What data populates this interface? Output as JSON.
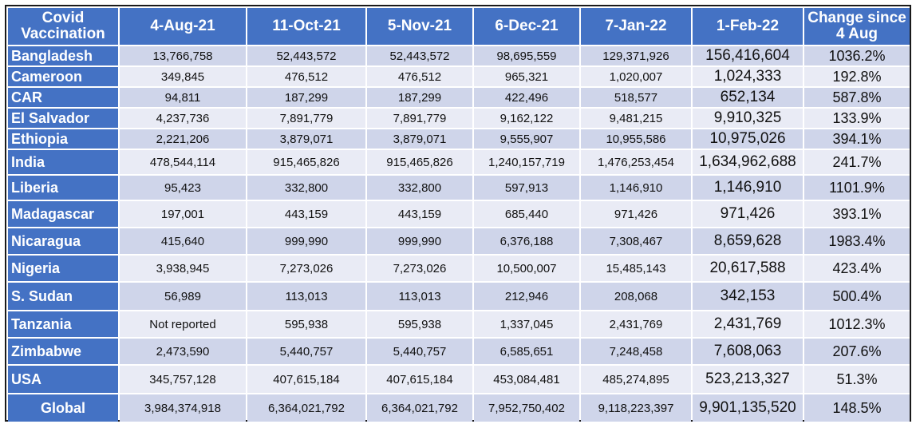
{
  "table": {
    "headers": [
      "Covid\nVaccination",
      "4-Aug-21",
      "11-Oct-21",
      "5-Nov-21",
      "6-Dec-21",
      "7-Jan-22",
      "1-Feb-22",
      "Change since\n4 Aug"
    ],
    "rows": [
      {
        "country": "Bangladesh",
        "values": [
          "13,766,758",
          "52,443,572",
          "52,443,572",
          "98,695,559",
          "129,371,926",
          "156,416,604",
          "1036.2%"
        ]
      },
      {
        "country": "Cameroon",
        "values": [
          "349,845",
          "476,512",
          "476,512",
          "965,321",
          "1,020,007",
          "1,024,333",
          "192.8%"
        ]
      },
      {
        "country": "CAR",
        "values": [
          "94,811",
          "187,299",
          "187,299",
          "422,496",
          "518,577",
          "652,134",
          "587.8%"
        ]
      },
      {
        "country": "El Salvador",
        "values": [
          "4,237,736",
          "7,891,779",
          "7,891,779",
          "9,162,122",
          "9,481,215",
          "9,910,325",
          "133.9%"
        ]
      },
      {
        "country": "Ethiopia",
        "values": [
          "2,221,206",
          "3,879,071",
          "3,879,071",
          "9,555,907",
          "10,955,586",
          "10,975,026",
          "394.1%"
        ]
      },
      {
        "country": "India",
        "values": [
          "478,544,114",
          "915,465,826",
          "915,465,826",
          "1,240,157,719",
          "1,476,253,454",
          "1,634,962,688",
          "241.7%"
        ]
      },
      {
        "country": "Liberia",
        "values": [
          "95,423",
          "332,800",
          "332,800",
          "597,913",
          "1,146,910",
          "1,146,910",
          "1101.9%"
        ]
      },
      {
        "country": "Madagascar",
        "values": [
          "197,001",
          "443,159",
          "443,159",
          "685,440",
          "971,426",
          "971,426",
          "393.1%"
        ]
      },
      {
        "country": "Nicaragua",
        "values": [
          "415,640",
          "999,990",
          "999,990",
          "6,376,188",
          "7,308,467",
          "8,659,628",
          "1983.4%"
        ]
      },
      {
        "country": "Nigeria",
        "values": [
          "3,938,945",
          "7,273,026",
          "7,273,026",
          "10,500,007",
          "15,485,143",
          "20,617,588",
          "423.4%"
        ]
      },
      {
        "country": "S. Sudan",
        "values": [
          "56,989",
          "113,013",
          "113,013",
          "212,946",
          "208,068",
          "342,153",
          "500.4%"
        ]
      },
      {
        "country": "Tanzania",
        "values": [
          "Not reported",
          "595,938",
          "595,938",
          "1,337,045",
          "2,431,769",
          "2,431,769",
          "1012.3%"
        ]
      },
      {
        "country": "Zimbabwe",
        "values": [
          "2,473,590",
          "5,440,757",
          "5,440,757",
          "6,585,651",
          "7,248,458",
          "7,608,063",
          "207.6%"
        ]
      },
      {
        "country": "USA",
        "values": [
          "345,757,128",
          "407,615,184",
          "407,615,184",
          "453,084,481",
          "485,274,895",
          "523,213,327",
          "51.3%"
        ]
      },
      {
        "country": "Global",
        "values": [
          "3,984,374,918",
          "6,364,021,792",
          "6,364,021,792",
          "7,952,750,402",
          "9,118,223,397",
          "9,901,135,520",
          "148.5%"
        ]
      }
    ]
  }
}
